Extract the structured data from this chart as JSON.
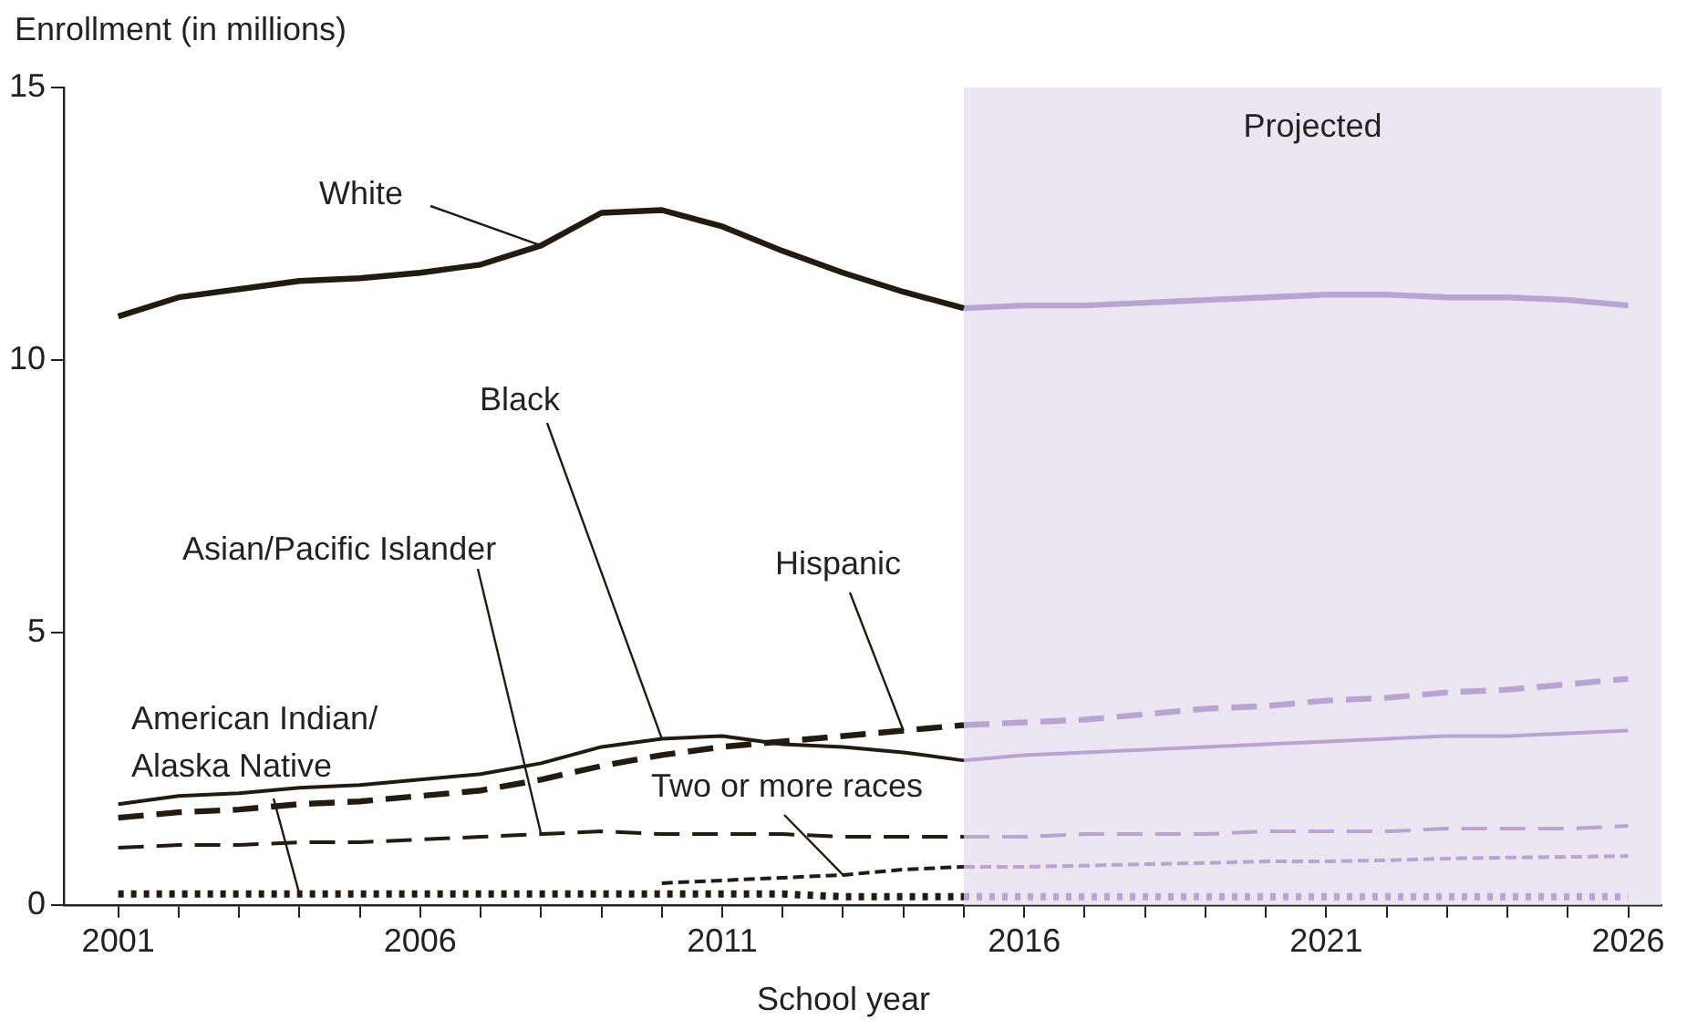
{
  "chart_data": {
    "type": "line",
    "xlabel": "School year",
    "ylabel": "Enrollment (in millions)",
    "xlim": [
      2000.1,
      2026.55
    ],
    "ylim": [
      0,
      15
    ],
    "yticks": [
      0,
      5,
      10,
      15
    ],
    "xticks": [
      2001,
      {
        "value": 2002,
        "label": null
      },
      {
        "value": 2003,
        "label": null
      },
      {
        "value": 2004,
        "label": null
      },
      {
        "value": 2005,
        "label": null
      },
      2006,
      {
        "value": 2007,
        "label": null
      },
      {
        "value": 2008,
        "label": null
      },
      {
        "value": 2009,
        "label": null
      },
      {
        "value": 2010,
        "label": null
      },
      2011,
      {
        "value": 2012,
        "label": null
      },
      {
        "value": 2013,
        "label": null
      },
      {
        "value": 2014,
        "label": null
      },
      {
        "value": 2015,
        "label": null
      },
      2016,
      {
        "value": 2017,
        "label": null
      },
      {
        "value": 2018,
        "label": null
      },
      {
        "value": 2019,
        "label": null
      },
      {
        "value": 2020,
        "label": null
      },
      2021,
      {
        "value": 2022,
        "label": null
      },
      {
        "value": 2023,
        "label": null
      },
      {
        "value": 2024,
        "label": null
      },
      {
        "value": 2025,
        "label": null
      },
      2026
    ],
    "grid": false,
    "legend": false,
    "marker": "none",
    "bands": [
      {
        "axis": "x",
        "from": 2015,
        "to": 2026.55,
        "label": "Projected",
        "color": "#ece5f2"
      }
    ],
    "series": [
      {
        "name": "White",
        "color": "#231a10",
        "line_style": "solid",
        "x": [
          2001,
          2002,
          2003,
          2004,
          2005,
          2006,
          2007,
          2008,
          2009,
          2010,
          2011,
          2012,
          2013,
          2014,
          2015
        ],
        "values": [
          10.8,
          11.15,
          11.3,
          11.45,
          11.5,
          11.6,
          11.75,
          12.1,
          12.7,
          12.75,
          12.45,
          12.0,
          11.6,
          11.25,
          10.95
        ]
      },
      {
        "name": "Black",
        "color": "#231a10",
        "line_style": "solid",
        "x": [
          2001,
          2002,
          2003,
          2004,
          2005,
          2006,
          2007,
          2008,
          2009,
          2010,
          2011,
          2012,
          2013,
          2014,
          2015
        ],
        "values": [
          1.85,
          2.0,
          2.05,
          2.15,
          2.2,
          2.3,
          2.4,
          2.6,
          2.9,
          3.05,
          3.1,
          2.95,
          2.9,
          2.8,
          2.65
        ]
      },
      {
        "name": "Hispanic",
        "color": "#231a10",
        "line_style": "dashed",
        "x": [
          2001,
          2002,
          2003,
          2004,
          2005,
          2006,
          2007,
          2008,
          2009,
          2010,
          2011,
          2012,
          2013,
          2014,
          2015
        ],
        "values": [
          1.6,
          1.7,
          1.75,
          1.85,
          1.9,
          2.0,
          2.1,
          2.3,
          2.55,
          2.75,
          2.9,
          3.0,
          3.1,
          3.2,
          3.3
        ]
      },
      {
        "name": "Asian/Pacific Islander",
        "color": "#231a10",
        "line_style": "dashed",
        "x": [
          2001,
          2002,
          2003,
          2004,
          2005,
          2006,
          2007,
          2008,
          2009,
          2010,
          2011,
          2012,
          2013,
          2014,
          2015
        ],
        "values": [
          1.05,
          1.1,
          1.1,
          1.15,
          1.15,
          1.2,
          1.25,
          1.3,
          1.35,
          1.3,
          1.3,
          1.3,
          1.25,
          1.25,
          1.25
        ]
      },
      {
        "name": "Two or more races",
        "color": "#231a10",
        "line_style": "dashed",
        "x": [
          2010,
          2011,
          2012,
          2013,
          2014,
          2015
        ],
        "values": [
          0.4,
          0.45,
          0.5,
          0.55,
          0.65,
          0.7
        ]
      },
      {
        "name": "American Indian/Alaska Native",
        "color": "#231a10",
        "line_style": "dotted",
        "x": [
          2001,
          2002,
          2003,
          2004,
          2005,
          2006,
          2007,
          2008,
          2009,
          2010,
          2011,
          2012,
          2013,
          2014,
          2015
        ],
        "values": [
          0.2,
          0.2,
          0.2,
          0.2,
          0.2,
          0.2,
          0.2,
          0.2,
          0.2,
          0.2,
          0.2,
          0.2,
          0.15,
          0.15,
          0.15
        ]
      },
      {
        "color": "#b9a5d4",
        "line_style": "solid",
        "x": [
          2015,
          2016,
          2017,
          2018,
          2019,
          2020,
          2021,
          2022,
          2023,
          2024,
          2025,
          2026
        ],
        "values": [
          10.95,
          11.0,
          11.0,
          11.05,
          11.1,
          11.15,
          11.2,
          11.2,
          11.15,
          11.15,
          11.1,
          11.0
        ]
      },
      {
        "color": "#b9a5d4",
        "line_style": "solid",
        "x": [
          2015,
          2016,
          2017,
          2018,
          2019,
          2020,
          2021,
          2022,
          2023,
          2024,
          2025,
          2026
        ],
        "values": [
          2.65,
          2.75,
          2.8,
          2.85,
          2.9,
          2.95,
          3.0,
          3.05,
          3.1,
          3.1,
          3.15,
          3.2
        ]
      },
      {
        "color": "#b9a5d4",
        "line_style": "dashed",
        "x": [
          2015,
          2016,
          2017,
          2018,
          2019,
          2020,
          2021,
          2022,
          2023,
          2024,
          2025,
          2026
        ],
        "values": [
          3.3,
          3.35,
          3.4,
          3.5,
          3.6,
          3.65,
          3.75,
          3.8,
          3.9,
          3.95,
          4.05,
          4.15
        ]
      },
      {
        "color": "#b9a5d4",
        "line_style": "dashed",
        "x": [
          2015,
          2016,
          2017,
          2018,
          2019,
          2020,
          2021,
          2022,
          2023,
          2024,
          2025,
          2026
        ],
        "values": [
          1.25,
          1.25,
          1.3,
          1.3,
          1.3,
          1.35,
          1.35,
          1.35,
          1.4,
          1.4,
          1.4,
          1.45
        ]
      },
      {
        "color": "#b9a5d4",
        "line_style": "dashed",
        "x": [
          2015,
          2016,
          2017,
          2018,
          2019,
          2020,
          2021,
          2022,
          2023,
          2024,
          2025,
          2026
        ],
        "values": [
          0.7,
          0.7,
          0.72,
          0.75,
          0.77,
          0.8,
          0.8,
          0.82,
          0.85,
          0.87,
          0.88,
          0.9
        ]
      },
      {
        "color": "#b9a5d4",
        "line_style": "dotted",
        "x": [
          2015,
          2016,
          2017,
          2018,
          2019,
          2020,
          2021,
          2022,
          2023,
          2024,
          2025,
          2026
        ],
        "values": [
          0.15,
          0.15,
          0.15,
          0.15,
          0.15,
          0.15,
          0.15,
          0.15,
          0.15,
          0.15,
          0.15,
          0.15
        ]
      }
    ]
  }
}
